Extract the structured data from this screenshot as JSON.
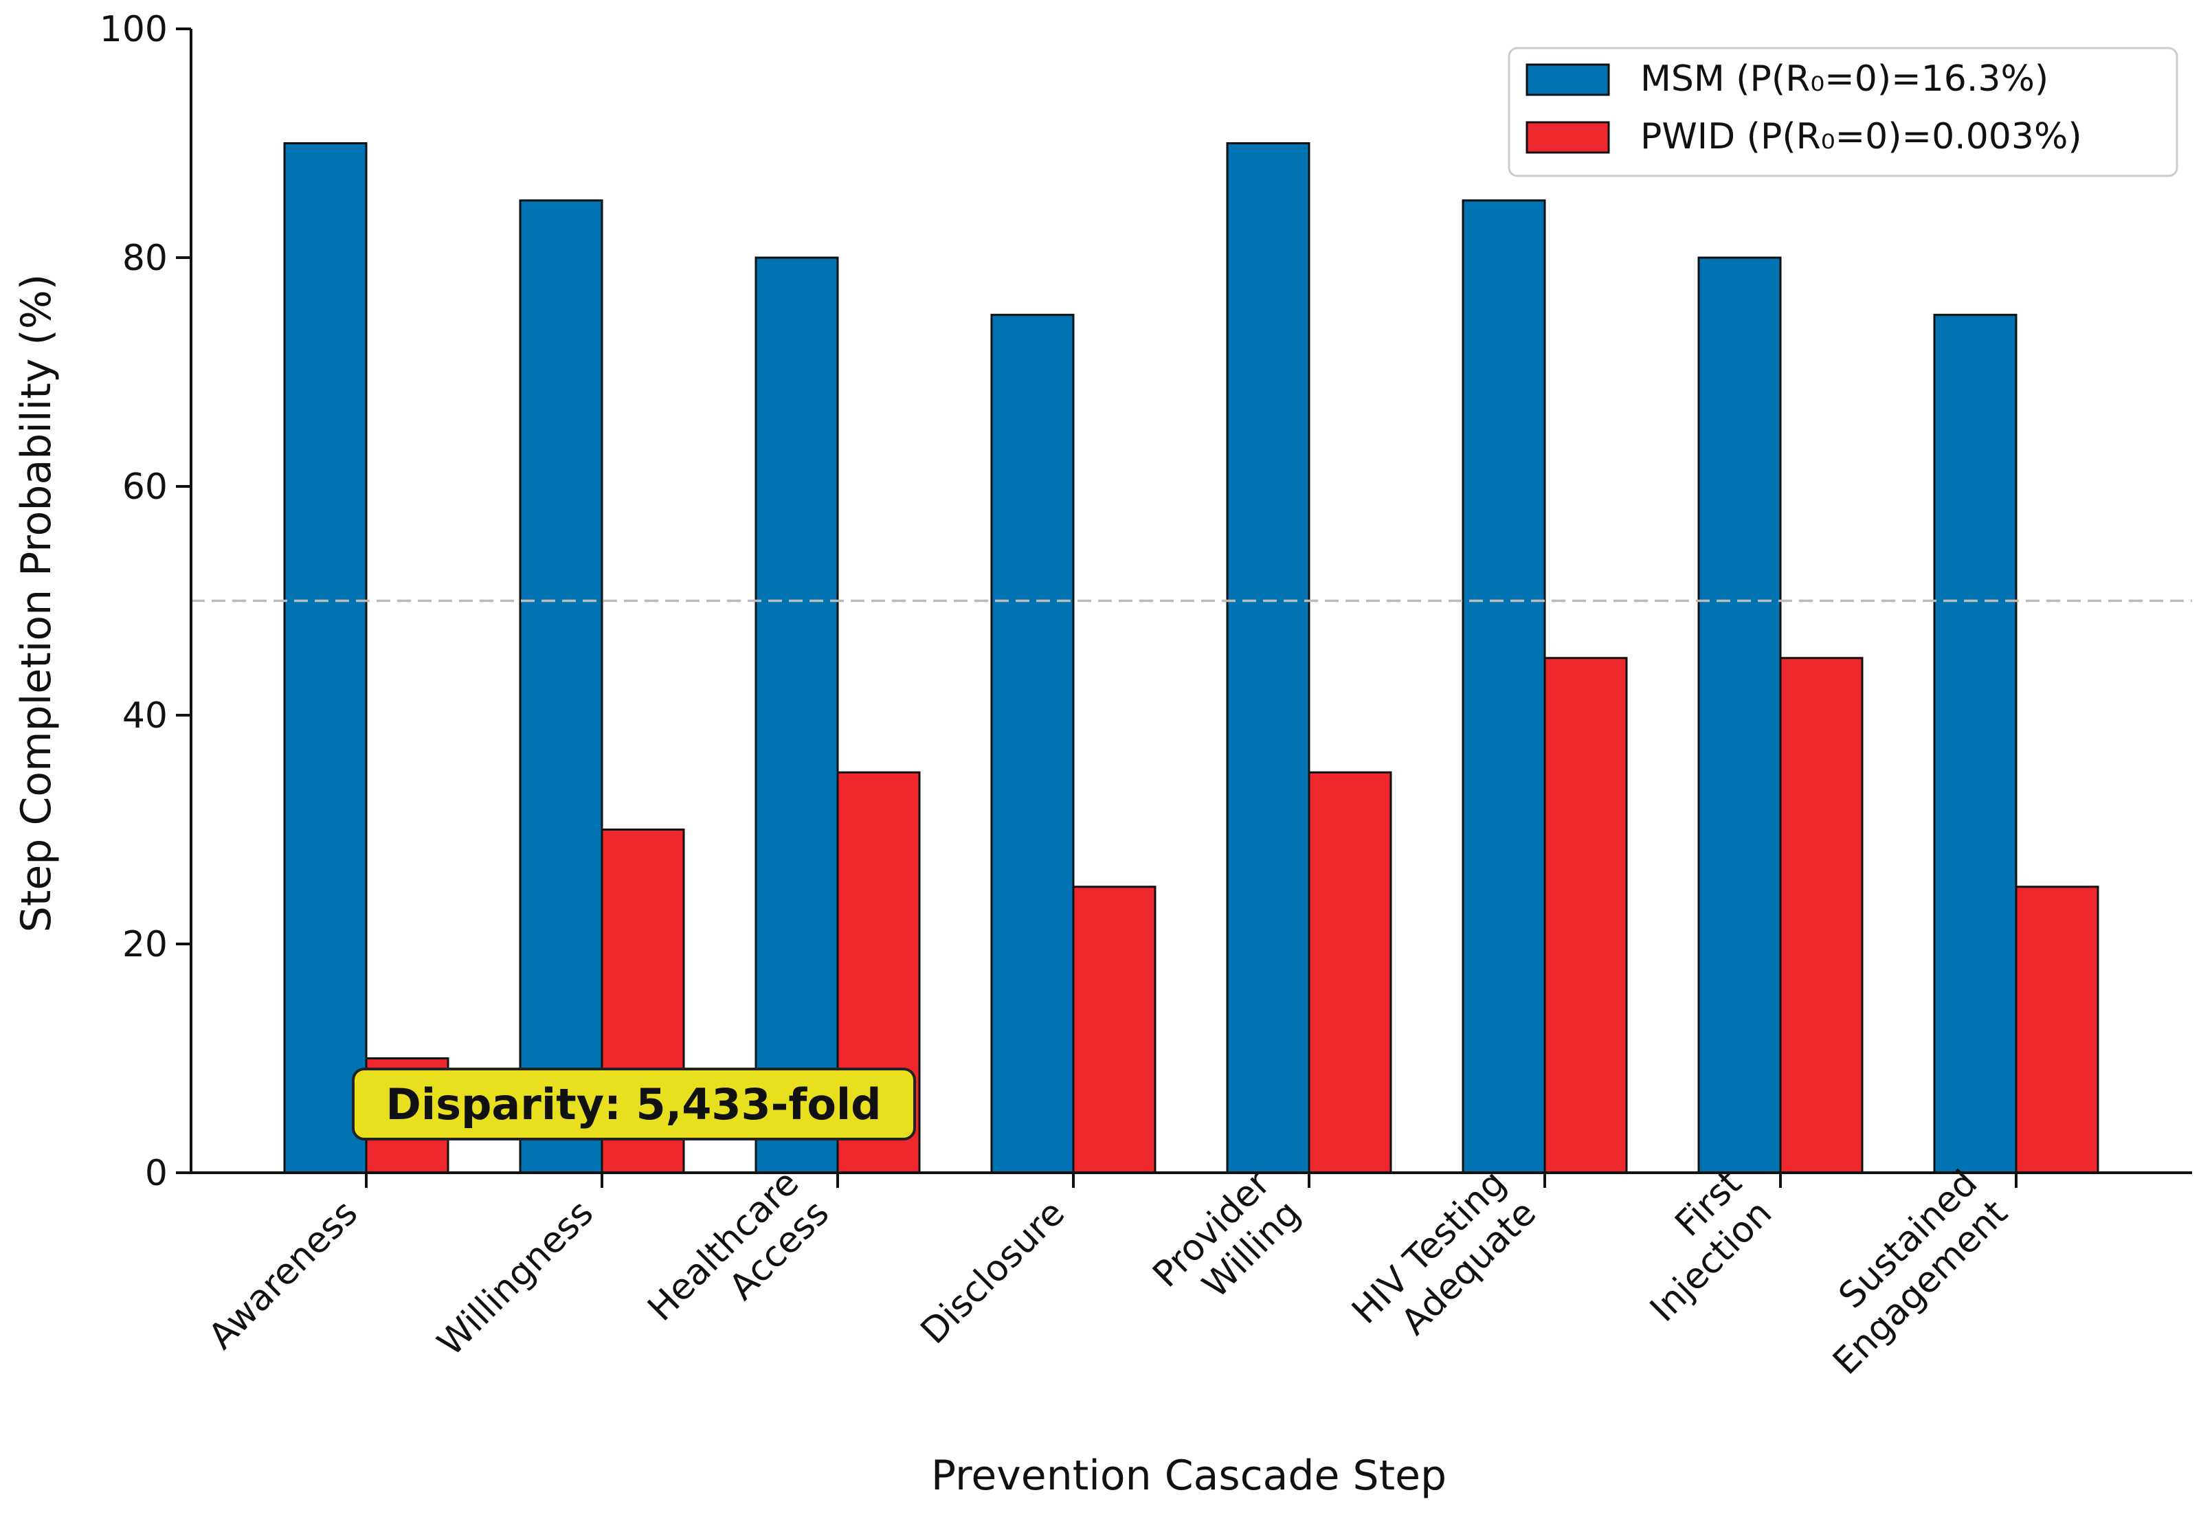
{
  "chart_data": {
    "type": "bar",
    "title": "",
    "xlabel": "Prevention Cascade Step",
    "ylabel": "Step Completion Probability (%)",
    "ylim": [
      0,
      100
    ],
    "yticks": [
      0,
      20,
      40,
      60,
      80,
      100
    ],
    "grid": false,
    "legend_position": "top-right",
    "categories": [
      [
        "Awareness"
      ],
      [
        "Willingness"
      ],
      [
        "Healthcare",
        "Access"
      ],
      [
        "Disclosure"
      ],
      [
        "Provider",
        "Willing"
      ],
      [
        "HIV Testing",
        "Adequate"
      ],
      [
        "First",
        "Injection"
      ],
      [
        "Sustained",
        "Engagement"
      ]
    ],
    "series": [
      {
        "name": "MSM (P(R₀=0)=16.3%)",
        "color": "#0173b2",
        "values": [
          90,
          85,
          80,
          75,
          90,
          85,
          80,
          75
        ]
      },
      {
        "name": "PWID (P(R₀=0)=0.003%)",
        "color": "#ee282c",
        "values": [
          10,
          30,
          35,
          25,
          35,
          45,
          45,
          25
        ]
      }
    ],
    "reference_line": {
      "y": 50,
      "style": "dashed",
      "color": "#bbbbbb"
    },
    "annotation": {
      "text": "Disparity: 5,433-fold",
      "background": "#e8e01e"
    }
  }
}
